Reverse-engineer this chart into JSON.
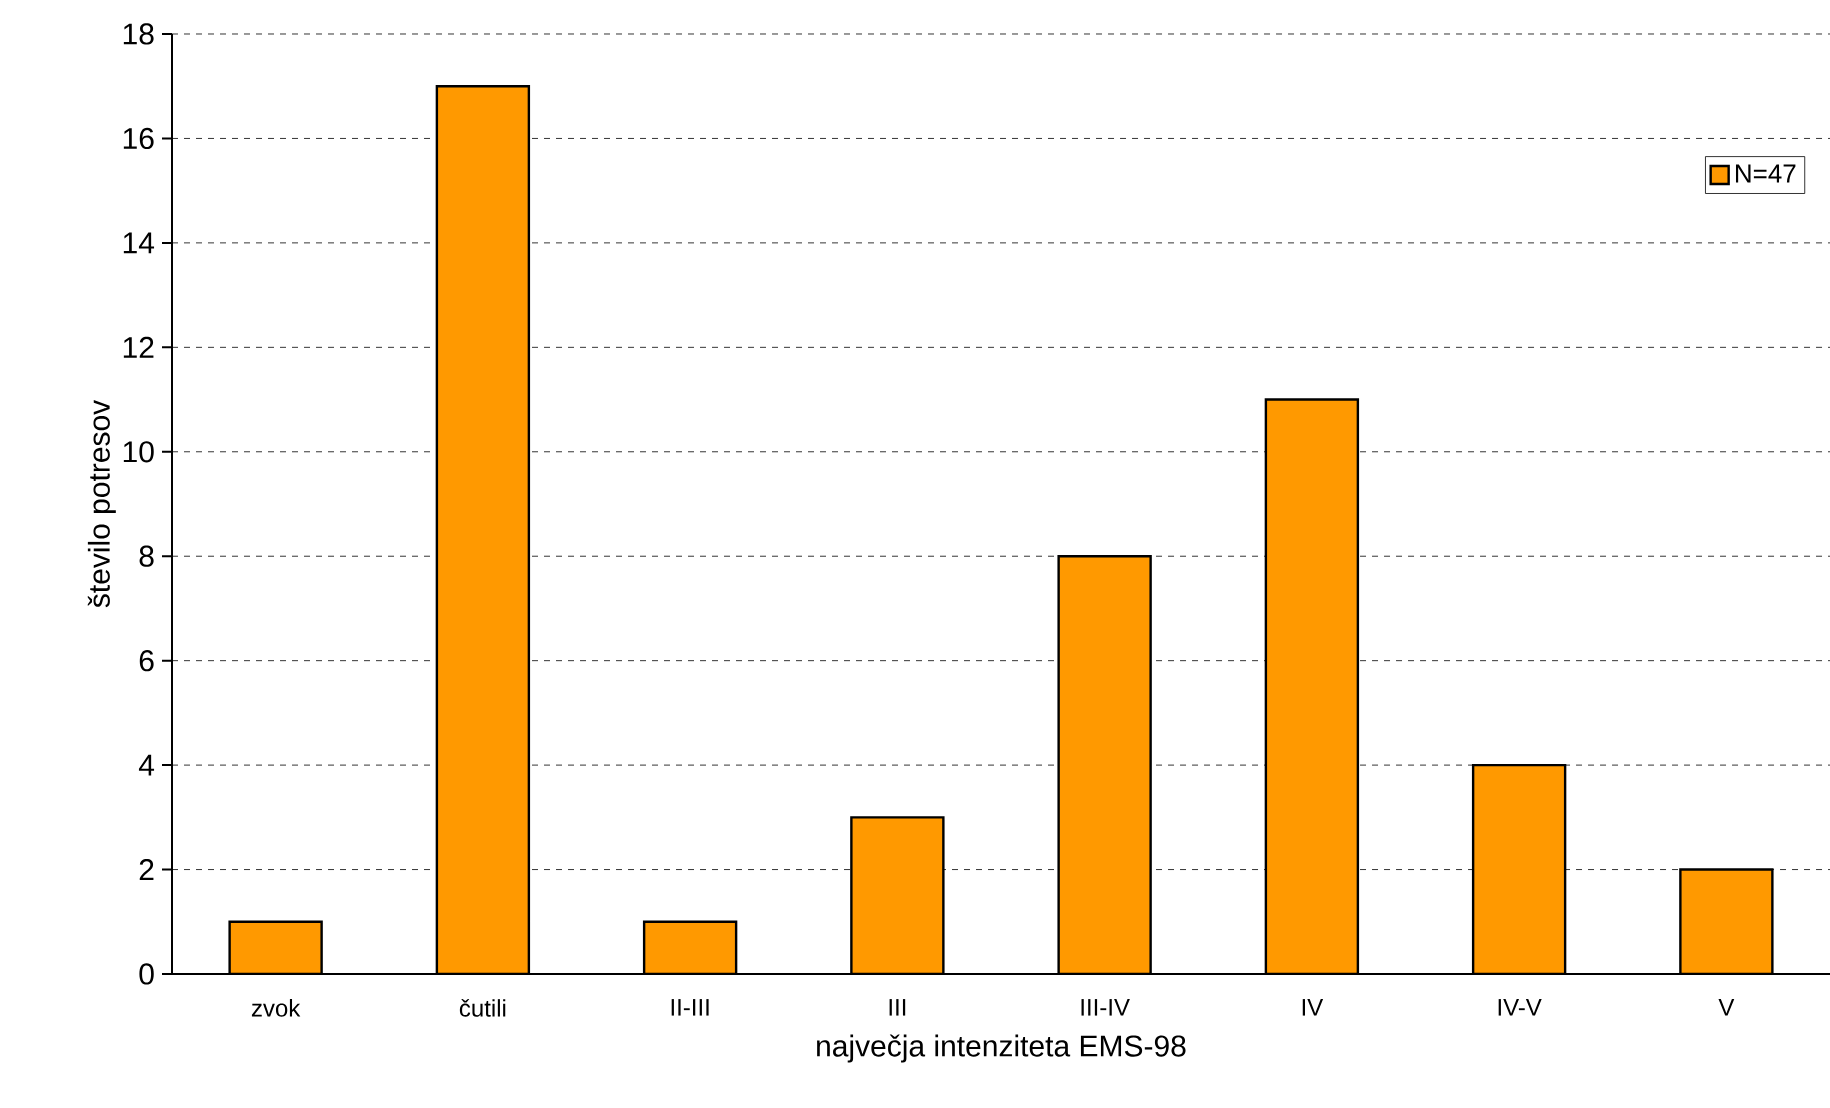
{
  "chart_data": {
    "type": "bar",
    "categories": [
      "zvok",
      "čutili",
      "II-III",
      "III",
      "III-IV",
      "IV",
      "IV-V",
      "V"
    ],
    "series": [
      {
        "name": "N=47",
        "color": "#ff9900",
        "values": [
          1,
          17,
          1,
          3,
          8,
          11,
          4,
          2
        ]
      }
    ],
    "xlabel": "največja intenziteta EMS-98",
    "ylabel": "število potresov",
    "ylim": [
      0,
      18
    ],
    "yticks": [
      0,
      2,
      4,
      6,
      8,
      10,
      12,
      14,
      16,
      18
    ],
    "grid": "y",
    "legend": "top right"
  }
}
